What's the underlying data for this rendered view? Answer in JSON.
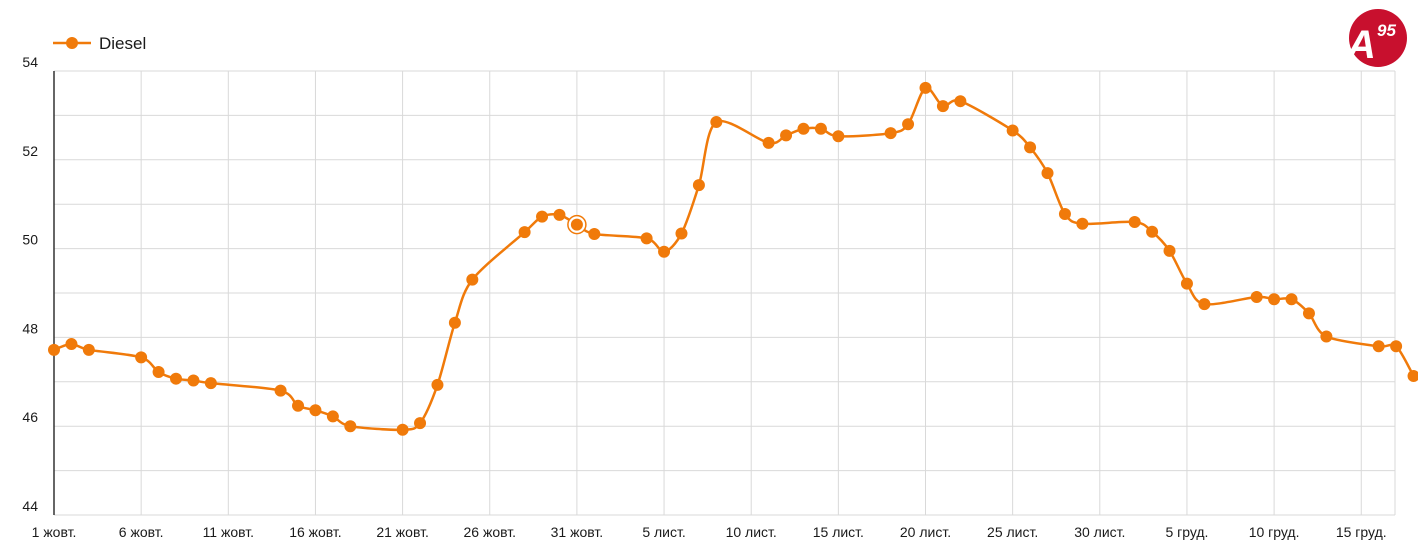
{
  "logo": {
    "text": "A",
    "superscript": "95",
    "color": "#c8102e"
  },
  "colors": {
    "series": "#f07a0a",
    "grid": "#d9d9d9",
    "axis": "#333333"
  },
  "chart_data": {
    "type": "line",
    "title": "",
    "xlabel": "",
    "ylabel": "",
    "ylim": [
      44,
      54
    ],
    "yticks": [
      44,
      46,
      48,
      50,
      52,
      54
    ],
    "grid": true,
    "legend": "top-left",
    "x_tick_labels": [
      "1 жовт.",
      "6 жовт.",
      "11 жовт.",
      "16 жовт.",
      "21 жовт.",
      "26 жовт.",
      "31 жовт.",
      "5 лист.",
      "10 лист.",
      "15 лист.",
      "20 лист.",
      "25 лист.",
      "30 лист.",
      "5 груд.",
      "10 груд.",
      "15 груд."
    ],
    "series": [
      {
        "name": "Diesel",
        "color": "#f07a0a",
        "points": [
          [
            "1 жовт.",
            47.72
          ],
          [
            "2 жовт.",
            47.85
          ],
          [
            "3 жовт.",
            47.72
          ],
          [
            "6 жовт.",
            47.55
          ],
          [
            "7 жовт.",
            47.22
          ],
          [
            "8 жовт.",
            47.07
          ],
          [
            "9 жовт.",
            47.03
          ],
          [
            "10 жовт.",
            46.97
          ],
          [
            "14 жовт.",
            46.8
          ],
          [
            "15 жовт.",
            46.46
          ],
          [
            "16 жовт.",
            46.36
          ],
          [
            "17 жовт.",
            46.22
          ],
          [
            "18 жовт.",
            46.0
          ],
          [
            "21 жовт.",
            45.92
          ],
          [
            "22 жовт.",
            46.07
          ],
          [
            "23 жовт.",
            46.93
          ],
          [
            "24 жовт.",
            48.33
          ],
          [
            "25 жовт.",
            49.3
          ],
          [
            "28 жовт.",
            50.37
          ],
          [
            "29 жовт.",
            50.72
          ],
          [
            "30 жовт.",
            50.76
          ],
          [
            "31 жовт.",
            50.54
          ],
          [
            "1 лист.",
            50.33
          ],
          [
            "4 лист.",
            50.23
          ],
          [
            "5 лист.",
            49.93
          ],
          [
            "6 лист.",
            50.34
          ],
          [
            "7 лист.",
            51.43
          ],
          [
            "8 лист.",
            52.85
          ],
          [
            "11 лист.",
            52.38
          ],
          [
            "12 лист.",
            52.55
          ],
          [
            "13 лист.",
            52.7
          ],
          [
            "14 лист.",
            52.7
          ],
          [
            "15 лист.",
            52.53
          ],
          [
            "18 лист.",
            52.6
          ],
          [
            "19 лист.",
            52.8
          ],
          [
            "20 лист.",
            53.62
          ],
          [
            "21 лист.",
            53.21
          ],
          [
            "22 лист.",
            53.32
          ],
          [
            "25 лист.",
            52.66
          ],
          [
            "26 лист.",
            52.28
          ],
          [
            "27 лист.",
            51.7
          ],
          [
            "28 лист.",
            50.78
          ],
          [
            "29 лист.",
            50.56
          ],
          [
            "2 груд.",
            50.6
          ],
          [
            "3 груд.",
            50.38
          ],
          [
            "4 груд.",
            49.95
          ],
          [
            "5 груд.",
            49.21
          ],
          [
            "6 груд.",
            48.75
          ],
          [
            "9 груд.",
            48.91
          ],
          [
            "10 груд.",
            48.86
          ],
          [
            "11 груд.",
            48.86
          ],
          [
            "12 груд.",
            48.54
          ],
          [
            "13 груд.",
            48.02
          ],
          [
            "16 груд.",
            47.8
          ],
          [
            "17 груд.",
            47.8
          ],
          [
            "18 груд.",
            47.13
          ]
        ],
        "highlighted_point": "31 жовт."
      }
    ]
  }
}
